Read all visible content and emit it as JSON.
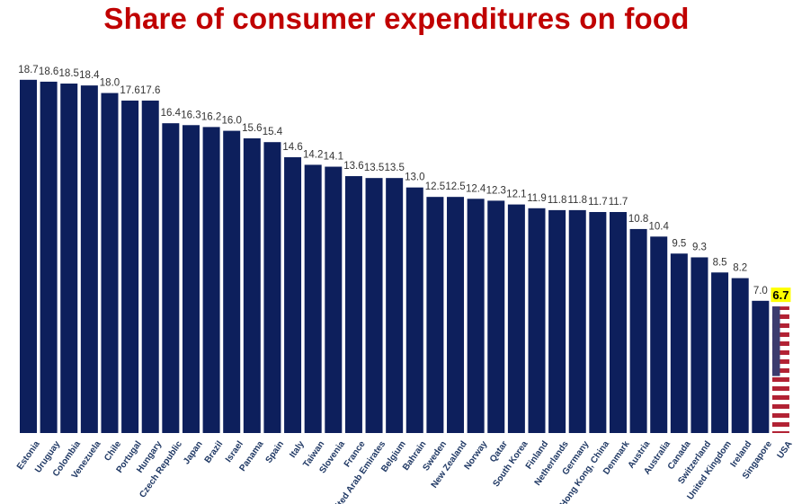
{
  "chart_data": {
    "type": "bar",
    "title": "Share of consumer expenditures on food",
    "xlabel": "",
    "ylabel": "",
    "ylim": [
      0,
      19.5
    ],
    "grid": false,
    "legend": "none",
    "categories": [
      "Estonia",
      "Uruguay",
      "Colombia",
      "Venezuela",
      "Chile",
      "Portugal",
      "Hungary",
      "Czech Republic",
      "Japan",
      "Brazil",
      "Israel",
      "Panama",
      "Spain",
      "Italy",
      "Taiwan",
      "Slovenia",
      "France",
      "United Arab Emirates",
      "Belgium",
      "Bahrain",
      "Sweden",
      "New Zealand",
      "Norway",
      "Qatar",
      "South Korea",
      "Finland",
      "Netherlands",
      "Germany",
      "Hong Kong, China",
      "Denmark",
      "Austria",
      "Australia",
      "Canada",
      "Switzerland",
      "United Kingdom",
      "Ireland",
      "Singapore",
      "USA"
    ],
    "values": [
      18.7,
      18.6,
      18.5,
      18.4,
      18.0,
      17.6,
      17.6,
      16.4,
      16.3,
      16.2,
      16.0,
      15.6,
      15.4,
      14.6,
      14.2,
      14.1,
      13.6,
      13.5,
      13.5,
      13.0,
      12.5,
      12.5,
      12.4,
      12.3,
      12.1,
      11.9,
      11.8,
      11.8,
      11.7,
      11.7,
      10.8,
      10.4,
      9.5,
      9.3,
      8.5,
      8.2,
      7.0,
      6.7
    ],
    "highlight": {
      "category": "USA",
      "fill": "us-flag",
      "label_background": "#ffff00"
    },
    "colors": {
      "bar": "#0d1f5c",
      "title": "#c00000",
      "label": "#1f3864"
    }
  }
}
